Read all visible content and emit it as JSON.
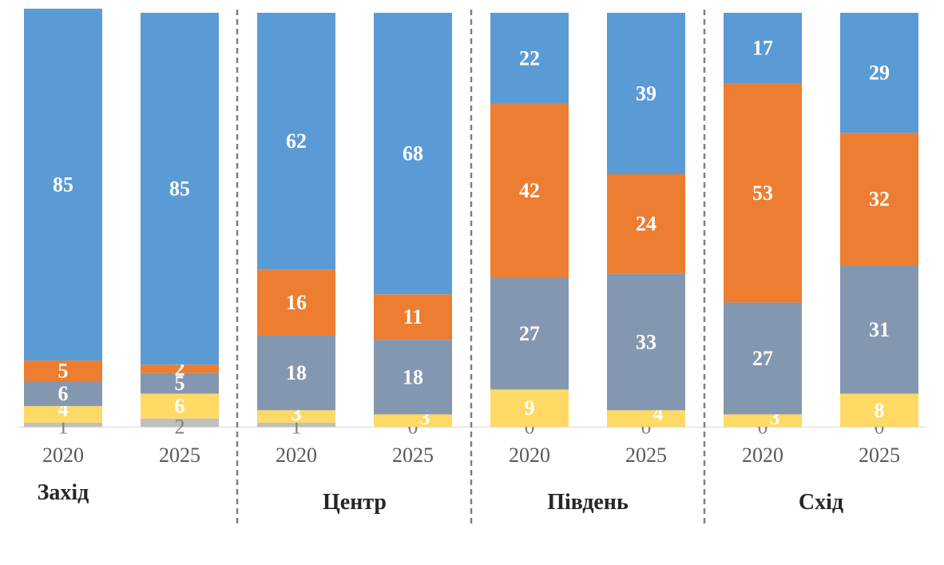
{
  "chart_data": {
    "type": "bar",
    "stacked": true,
    "title": "",
    "xlabel": "",
    "ylabel": "",
    "ylim": [
      0,
      100
    ],
    "grid": false,
    "legend": "none",
    "colors": {
      "s1": "#bfbfbf",
      "s2": "#ffd966",
      "s3": "#8497b0",
      "s4": "#ed7d31",
      "s5": "#5b9bd5"
    },
    "groups": [
      {
        "name": "Захід",
        "bars": [
          {
            "year": "2020",
            "values": [
              1,
              4,
              6,
              5,
              85
            ]
          },
          {
            "year": "2025",
            "values": [
              2,
              6,
              5,
              2,
              85
            ]
          }
        ]
      },
      {
        "name": "Центр",
        "bars": [
          {
            "year": "2020",
            "values": [
              1,
              3,
              18,
              16,
              62
            ]
          },
          {
            "year": "2025",
            "values": [
              0,
              3,
              18,
              11,
              68
            ]
          }
        ]
      },
      {
        "name": "Південь",
        "bars": [
          {
            "year": "2020",
            "values": [
              0,
              9,
              27,
              42,
              22
            ]
          },
          {
            "year": "2025",
            "values": [
              0,
              4,
              33,
              24,
              39
            ]
          }
        ]
      },
      {
        "name": "Схід",
        "bars": [
          {
            "year": "2020",
            "values": [
              0,
              3,
              27,
              53,
              17
            ]
          },
          {
            "year": "2025",
            "values": [
              0,
              8,
              31,
              32,
              29
            ]
          }
        ]
      }
    ]
  }
}
